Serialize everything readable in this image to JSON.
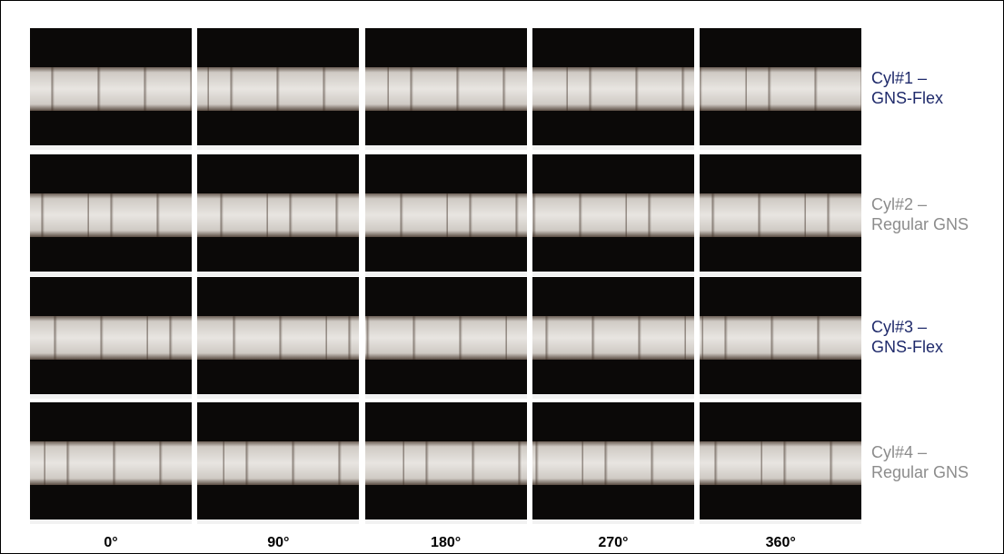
{
  "rows": [
    {
      "label_lines": [
        "Cyl#1 –",
        "GNS-Flex"
      ],
      "color": "#1f2a6b"
    },
    {
      "label_lines": [
        "Cyl#2 –",
        "Regular GNS"
      ],
      "color": "#8c8c8c"
    },
    {
      "label_lines": [
        "Cyl#3 –",
        "GNS-Flex"
      ],
      "color": "#1f2a6b"
    },
    {
      "label_lines": [
        "Cyl#4 –",
        "Regular GNS"
      ],
      "color": "#8c8c8c"
    }
  ],
  "columns": [
    "0°",
    "90°",
    "180°",
    "270°",
    "360°"
  ]
}
